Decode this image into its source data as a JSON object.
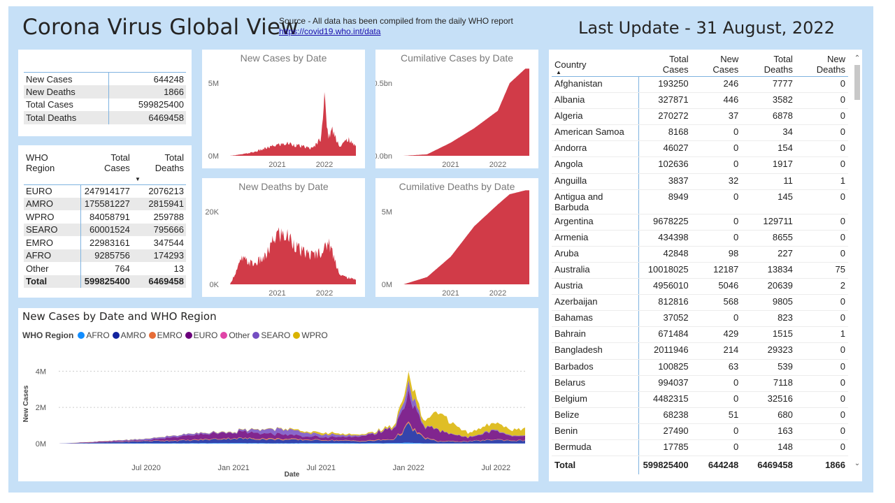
{
  "header": {
    "title": "Corona Virus Global View",
    "source_text": "Source - All data has been compiled from the daily WHO report",
    "source_link": "https://covid19.who.int/data",
    "last_update": "Last Update - 31 August, 2022"
  },
  "kpi": [
    {
      "label": "New Cases",
      "value": "644248"
    },
    {
      "label": "New Deaths",
      "value": "1866"
    },
    {
      "label": "Total Cases",
      "value": "599825400"
    },
    {
      "label": "Total Deaths",
      "value": "6469458"
    }
  ],
  "who_table": {
    "headers": [
      "WHO Region",
      "Total Cases",
      "Total Deaths"
    ],
    "rows": [
      [
        "EURO",
        "247914177",
        "2076213"
      ],
      [
        "AMRO",
        "175581227",
        "2815941"
      ],
      [
        "WPRO",
        "84058791",
        "259788"
      ],
      [
        "SEARO",
        "60001524",
        "795666"
      ],
      [
        "EMRO",
        "22983161",
        "347544"
      ],
      [
        "AFRO",
        "9285756",
        "174293"
      ],
      [
        "Other",
        "764",
        "13"
      ]
    ],
    "total": [
      "Total",
      "599825400",
      "6469458"
    ]
  },
  "charts": {
    "new_cases": {
      "title": "New Cases by Date",
      "yticks": [
        "5M",
        "0M"
      ],
      "xticks": [
        "2021",
        "2022"
      ]
    },
    "cum_cases": {
      "title": "Cumilative Cases by Date",
      "yticks": [
        "0.5bn",
        "0.0bn"
      ],
      "xticks": [
        "2021",
        "2022"
      ]
    },
    "new_deaths": {
      "title": "New Deaths by Date",
      "yticks": [
        "20K",
        "0K"
      ],
      "xticks": [
        "2021",
        "2022"
      ]
    },
    "cum_deaths": {
      "title": "Cumilative Deaths by Date",
      "yticks": [
        "5M",
        "0M"
      ],
      "xticks": [
        "2021",
        "2022"
      ]
    },
    "region": {
      "title": "New Cases by Date and WHO Region",
      "legend_title": "WHO Region",
      "legend": [
        {
          "name": "AFRO",
          "color": "#118dff"
        },
        {
          "name": "AMRO",
          "color": "#12239e"
        },
        {
          "name": "EMRO",
          "color": "#e66c37"
        },
        {
          "name": "EURO",
          "color": "#6b007b"
        },
        {
          "name": "Other",
          "color": "#e044a7"
        },
        {
          "name": "SEARO",
          "color": "#744ec2"
        },
        {
          "name": "WPRO",
          "color": "#d9b300"
        }
      ],
      "yticks": [
        "4M",
        "2M",
        "0M"
      ],
      "xticks": [
        "Jul 2020",
        "Jan 2021",
        "Jul 2021",
        "Jan 2022",
        "Jul 2022"
      ],
      "xlabel": "Date",
      "ylabel": "New Cases"
    }
  },
  "chart_data": [
    {
      "type": "area",
      "title": "New Cases by Date",
      "x": [
        "2020-01",
        "2020-04",
        "2020-07",
        "2020-10",
        "2021-01",
        "2021-04",
        "2021-07",
        "2021-10",
        "2021-12",
        "2022-01",
        "2022-02",
        "2022-03",
        "2022-05",
        "2022-07",
        "2022-08"
      ],
      "values": [
        0,
        0.1,
        0.25,
        0.5,
        0.75,
        0.85,
        0.65,
        0.5,
        1.2,
        3.8,
        1.3,
        1.8,
        0.6,
        1.2,
        0.8
      ],
      "yunit": "M",
      "color": "#d13b48"
    },
    {
      "type": "area",
      "title": "Cumilative Cases by Date",
      "x": [
        "2020-01",
        "2020-07",
        "2021-01",
        "2021-07",
        "2022-01",
        "2022-04",
        "2022-08"
      ],
      "values": [
        0,
        0.01,
        0.09,
        0.19,
        0.31,
        0.5,
        0.6
      ],
      "yunit": "bn",
      "color": "#d13b48"
    },
    {
      "type": "area",
      "title": "New Deaths by Date",
      "x": [
        "2020-01",
        "2020-04",
        "2020-07",
        "2020-10",
        "2021-01",
        "2021-04",
        "2021-07",
        "2021-10",
        "2022-01",
        "2022-02",
        "2022-05",
        "2022-08"
      ],
      "values": [
        0,
        7000,
        5500,
        7500,
        14000,
        13000,
        9000,
        8000,
        9500,
        12000,
        2500,
        1500
      ],
      "yunit": "K",
      "color": "#d13b48"
    },
    {
      "type": "area",
      "title": "Cumilative Deaths by Date",
      "x": [
        "2020-01",
        "2020-07",
        "2021-01",
        "2021-07",
        "2022-01",
        "2022-04",
        "2022-08"
      ],
      "values": [
        0,
        0.5,
        1.9,
        4.0,
        5.5,
        6.2,
        6.47
      ],
      "yunit": "M",
      "color": "#d13b48"
    },
    {
      "type": "area",
      "title": "New Cases by Date and WHO Region",
      "xlabel": "Date",
      "ylabel": "New Cases",
      "x": [
        "2020-01",
        "2020-04",
        "2020-07",
        "2020-10",
        "2021-01",
        "2021-04",
        "2021-07",
        "2021-10",
        "2021-12",
        "2022-01",
        "2022-02",
        "2022-03",
        "2022-05",
        "2022-07",
        "2022-08"
      ],
      "series": [
        {
          "name": "AFRO",
          "values": [
            0,
            0.01,
            0.02,
            0.02,
            0.03,
            0.02,
            0.03,
            0.02,
            0.03,
            0.05,
            0.02,
            0.01,
            0.01,
            0.01,
            0.01
          ]
        },
        {
          "name": "AMRO",
          "values": [
            0,
            0.05,
            0.12,
            0.15,
            0.25,
            0.2,
            0.15,
            0.1,
            0.2,
            0.9,
            0.3,
            0.1,
            0.1,
            0.2,
            0.15
          ]
        },
        {
          "name": "EMRO",
          "values": [
            0,
            0.01,
            0.02,
            0.03,
            0.03,
            0.05,
            0.03,
            0.03,
            0.03,
            0.1,
            0.05,
            0.03,
            0.02,
            0.03,
            0.02
          ]
        },
        {
          "name": "EURO",
          "values": [
            0,
            0.04,
            0.03,
            0.25,
            0.35,
            0.25,
            0.15,
            0.25,
            0.6,
            1.6,
            0.6,
            0.6,
            0.2,
            0.5,
            0.25
          ]
        },
        {
          "name": "Other",
          "values": [
            0,
            0,
            0,
            0,
            0,
            0,
            0,
            0,
            0,
            0,
            0,
            0,
            0,
            0,
            0
          ]
        },
        {
          "name": "SEARO",
          "values": [
            0,
            0.01,
            0.07,
            0.08,
            0.03,
            0.3,
            0.15,
            0.05,
            0.03,
            0.5,
            0.05,
            0.02,
            0.02,
            0.05,
            0.03
          ]
        },
        {
          "name": "WPRO",
          "values": [
            0,
            0.01,
            0.01,
            0.01,
            0.02,
            0.02,
            0.1,
            0.05,
            0.1,
            0.5,
            0.3,
            1.0,
            0.25,
            0.4,
            0.35
          ]
        }
      ],
      "ylim": [
        0,
        4.4
      ],
      "yunit": "M",
      "legend_position": "top-left"
    }
  ],
  "countries": {
    "headers": [
      "Country",
      "Total Cases",
      "New Cases",
      "Total Deaths",
      "New Deaths"
    ],
    "rows": [
      [
        "Afghanistan",
        "193250",
        "246",
        "7777",
        "0"
      ],
      [
        "Albania",
        "327871",
        "446",
        "3582",
        "0"
      ],
      [
        "Algeria",
        "270272",
        "37",
        "6878",
        "0"
      ],
      [
        "American Samoa",
        "8168",
        "0",
        "34",
        "0"
      ],
      [
        "Andorra",
        "46027",
        "0",
        "154",
        "0"
      ],
      [
        "Angola",
        "102636",
        "0",
        "1917",
        "0"
      ],
      [
        "Anguilla",
        "3837",
        "32",
        "11",
        "1"
      ],
      [
        "Antigua and Barbuda",
        "8949",
        "0",
        "145",
        "0"
      ],
      [
        "Argentina",
        "9678225",
        "0",
        "129711",
        "0"
      ],
      [
        "Armenia",
        "434398",
        "0",
        "8655",
        "0"
      ],
      [
        "Aruba",
        "42848",
        "98",
        "227",
        "0"
      ],
      [
        "Australia",
        "10018025",
        "12187",
        "13834",
        "75"
      ],
      [
        "Austria",
        "4956010",
        "5046",
        "20639",
        "2"
      ],
      [
        "Azerbaijan",
        "812816",
        "568",
        "9805",
        "0"
      ],
      [
        "Bahamas",
        "37052",
        "0",
        "823",
        "0"
      ],
      [
        "Bahrain",
        "671484",
        "429",
        "1515",
        "1"
      ],
      [
        "Bangladesh",
        "2011946",
        "214",
        "29323",
        "0"
      ],
      [
        "Barbados",
        "100825",
        "63",
        "539",
        "0"
      ],
      [
        "Belarus",
        "994037",
        "0",
        "7118",
        "0"
      ],
      [
        "Belgium",
        "4482315",
        "0",
        "32516",
        "0"
      ],
      [
        "Belize",
        "68238",
        "51",
        "680",
        "0"
      ],
      [
        "Benin",
        "27490",
        "0",
        "163",
        "0"
      ],
      [
        "Bermuda",
        "17785",
        "0",
        "148",
        "0"
      ]
    ],
    "total": [
      "Total",
      "599825400",
      "644248",
      "6469458",
      "1866"
    ]
  }
}
